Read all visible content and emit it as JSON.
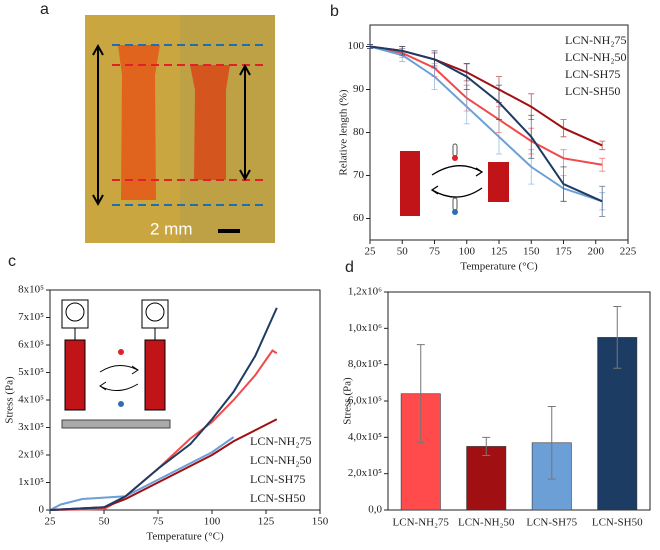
{
  "photo": {
    "label": "a",
    "scale_bar": "2 mm"
  },
  "chart_data": [
    {
      "type": "line",
      "label": "b",
      "xlabel": "Temperature (°C)",
      "ylabel": "Relative length (%)",
      "xlim": [
        25,
        225
      ],
      "xticks": [
        25,
        50,
        75,
        100,
        125,
        150,
        175,
        200,
        225
      ],
      "ylim": [
        55,
        105
      ],
      "yticks": [
        60,
        70,
        80,
        90,
        100
      ],
      "legend": "upper right",
      "x": [
        25,
        50,
        75,
        100,
        125,
        150,
        175,
        205
      ],
      "series": [
        {
          "name": "LCN-NH₂75",
          "color": "#f04a4a",
          "values": [
            100,
            98.5,
            95,
            88,
            83,
            78,
            74,
            72.5
          ],
          "errors": [
            0.5,
            1,
            2,
            3,
            3,
            3,
            2,
            1.5
          ]
        },
        {
          "name": "LCN-NH₂50",
          "color": "#a00f12",
          "values": [
            100,
            99,
            97,
            94,
            90,
            86,
            81,
            77
          ],
          "errors": [
            0.5,
            1,
            1.5,
            2,
            3,
            3,
            2,
            1
          ]
        },
        {
          "name": "LCN-SH75",
          "color": "#6b9fd6",
          "values": [
            100,
            98,
            93,
            86,
            79,
            72,
            67,
            64
          ],
          "errors": [
            0.5,
            1.5,
            3,
            4,
            4,
            4,
            3,
            2
          ]
        },
        {
          "name": "LCN-SH50",
          "color": "#1d3c63",
          "values": [
            100,
            99,
            97,
            93,
            87,
            79,
            68,
            64
          ],
          "errors": [
            0.5,
            1,
            2,
            3,
            4,
            5,
            4,
            3.5
          ]
        }
      ]
    },
    {
      "type": "line",
      "label": "c",
      "xlabel": "Temperature (°C)",
      "ylabel": "Stress (Pa)",
      "xlim": [
        25,
        150
      ],
      "xticks": [
        25,
        50,
        75,
        100,
        125,
        150
      ],
      "ylim": [
        0,
        800000
      ],
      "yticks": [
        0,
        {
          "value": 100000,
          "label": "1x10⁵"
        },
        {
          "value": 200000,
          "label": "2x10⁵"
        },
        {
          "value": 300000,
          "label": "3x10⁵"
        },
        {
          "value": 400000,
          "label": "4x10⁵"
        },
        {
          "value": 500000,
          "label": "5x10⁵"
        },
        {
          "value": 600000,
          "label": "6x10⁵"
        },
        {
          "value": 700000,
          "label": "7x10⁵"
        },
        {
          "value": 800000,
          "label": "8x10⁵"
        }
      ],
      "legend": "lower right",
      "series": [
        {
          "name": "LCN-NH₂75",
          "color": "#f04a4a",
          "x": [
            25,
            50,
            60,
            75,
            90,
            100,
            110,
            120,
            128,
            130
          ],
          "values": [
            0,
            3000,
            50000,
            150000,
            260000,
            320000,
            400000,
            490000,
            580000,
            570000
          ]
        },
        {
          "name": "LCN-NH₂50",
          "color": "#a00f12",
          "x": [
            25,
            50,
            60,
            75,
            90,
            100,
            110,
            120,
            130
          ],
          "values": [
            0,
            10000,
            40000,
            100000,
            160000,
            200000,
            250000,
            290000,
            330000
          ]
        },
        {
          "name": "LCN-SH75",
          "color": "#6b9fd6",
          "x": [
            25,
            30,
            40,
            50,
            60,
            75,
            90,
            100,
            110
          ],
          "values": [
            0,
            20000,
            40000,
            45000,
            50000,
            110000,
            170000,
            210000,
            265000
          ]
        },
        {
          "name": "LCN-SH50",
          "color": "#1d3c63",
          "x": [
            25,
            50,
            60,
            75,
            90,
            100,
            110,
            120,
            130
          ],
          "values": [
            0,
            10000,
            50000,
            150000,
            240000,
            330000,
            430000,
            560000,
            735000
          ]
        }
      ]
    },
    {
      "type": "bar",
      "label": "d",
      "ylabel": "Stress (Pa)",
      "categories": [
        "LCN-NH₂75",
        "LCN-NH₂50",
        "LCN-SH75",
        "LCN-SH50"
      ],
      "values": [
        640000,
        350000,
        370000,
        950000
      ],
      "errors": [
        270000,
        50000,
        200000,
        170000
      ],
      "colors": [
        "#ff4b4b",
        "#a00f12",
        "#6b9fd6",
        "#1d3c63"
      ],
      "ylim": [
        0,
        1200000
      ],
      "yticks": [
        {
          "value": 0,
          "label": "0,0"
        },
        {
          "value": 200000,
          "label": "2,0x10⁵"
        },
        {
          "value": 400000,
          "label": "4,0x10⁵"
        },
        {
          "value": 600000,
          "label": "6,0x10⁵"
        },
        {
          "value": 800000,
          "label": "8,0x10⁵"
        },
        {
          "value": 1000000,
          "label": "1,0x10⁶"
        },
        {
          "value": 1200000,
          "label": "1,2x10⁶"
        }
      ]
    }
  ]
}
